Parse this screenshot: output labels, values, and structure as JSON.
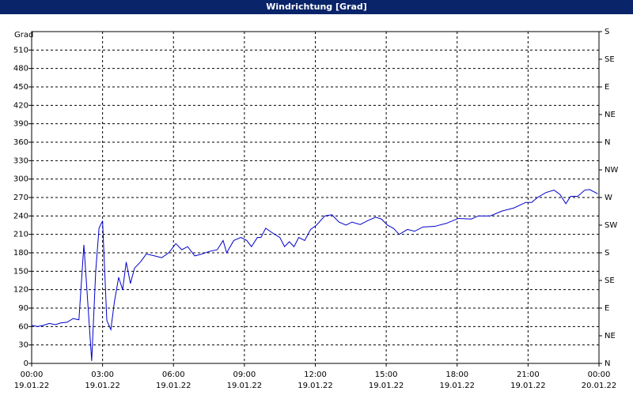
{
  "window_title": "Windrichtung [Grad]",
  "chart_data": {
    "type": "line",
    "ylabel": "Grad",
    "x": [
      0,
      0.25,
      0.5,
      0.75,
      1.0,
      1.25,
      1.5,
      1.75,
      2.0,
      2.21,
      2.54,
      2.71,
      2.85,
      3.0,
      3.18,
      3.35,
      3.5,
      3.68,
      3.85,
      4.0,
      4.18,
      4.35,
      4.6,
      4.85,
      5.2,
      5.5,
      5.8,
      6.1,
      6.35,
      6.6,
      6.9,
      7.2,
      7.5,
      7.85,
      8.1,
      8.25,
      8.55,
      8.85,
      9.1,
      9.3,
      9.55,
      9.7,
      9.9,
      10.2,
      10.5,
      10.7,
      10.9,
      11.1,
      11.3,
      11.55,
      11.8,
      12.05,
      12.4,
      12.7,
      13.0,
      13.3,
      13.55,
      13.9,
      14.2,
      14.55,
      14.8,
      15.05,
      15.3,
      15.55,
      15.9,
      16.2,
      16.55,
      17.05,
      17.55,
      18.05,
      18.6,
      18.9,
      19.4,
      19.9,
      20.4,
      20.9,
      21.15,
      21.4,
      21.75,
      22.1,
      22.35,
      22.6,
      22.8,
      23.1,
      23.4,
      23.6,
      23.95
    ],
    "series": [
      {
        "color": "#0000cc",
        "values": [
          62,
          60,
          62,
          65,
          63,
          66,
          67,
          73,
          71,
          193,
          4,
          150,
          220,
          232,
          70,
          55,
          100,
          140,
          120,
          165,
          130,
          155,
          165,
          178,
          175,
          172,
          180,
          195,
          185,
          190,
          175,
          178,
          182,
          185,
          200,
          180,
          200,
          205,
          200,
          190,
          205,
          205,
          220,
          212,
          205,
          190,
          198,
          190,
          205,
          200,
          218,
          225,
          240,
          242,
          230,
          225,
          230,
          226,
          232,
          238,
          235,
          225,
          220,
          210,
          218,
          215,
          222,
          223,
          228,
          236,
          235,
          240,
          240,
          248,
          253,
          262,
          262,
          270,
          278,
          282,
          275,
          260,
          272,
          272,
          282,
          283,
          276
        ]
      }
    ],
    "xlim": [
      0,
      24
    ],
    "xticks": [
      {
        "value": 0,
        "label": "00:00 19.01.22"
      },
      {
        "value": 3,
        "label": "03:00 19.01.22"
      },
      {
        "value": 6,
        "label": "06:00 19.01.22"
      },
      {
        "value": 9,
        "label": "09:00 19.01.22"
      },
      {
        "value": 12,
        "label": "12:00 19.01.22"
      },
      {
        "value": 15,
        "label": "15:00 19.01.22"
      },
      {
        "value": 18,
        "label": "18:00 19.01.22"
      },
      {
        "value": 21,
        "label": "21:00 19.01.22"
      },
      {
        "value": 24,
        "label": "00:00 20.01.22"
      }
    ],
    "ylim": [
      0,
      540
    ],
    "yticks": [
      0,
      30,
      60,
      90,
      120,
      150,
      180,
      210,
      240,
      270,
      300,
      330,
      360,
      390,
      420,
      450,
      480,
      510
    ],
    "y2lim": [
      0,
      540
    ],
    "y2ticks": [
      {
        "value": 0,
        "label": "N"
      },
      {
        "value": 45,
        "label": "NE"
      },
      {
        "value": 90,
        "label": "E"
      },
      {
        "value": 135,
        "label": "SE"
      },
      {
        "value": 180,
        "label": "S"
      },
      {
        "value": 225,
        "label": "SW"
      },
      {
        "value": 270,
        "label": "W"
      },
      {
        "value": 315,
        "label": "NW"
      },
      {
        "value": 360,
        "label": "N"
      },
      {
        "value": 405,
        "label": "NE"
      },
      {
        "value": 450,
        "label": "E"
      },
      {
        "value": 495,
        "label": "SE"
      },
      {
        "value": 540,
        "label": "S"
      }
    ],
    "grid": true
  }
}
